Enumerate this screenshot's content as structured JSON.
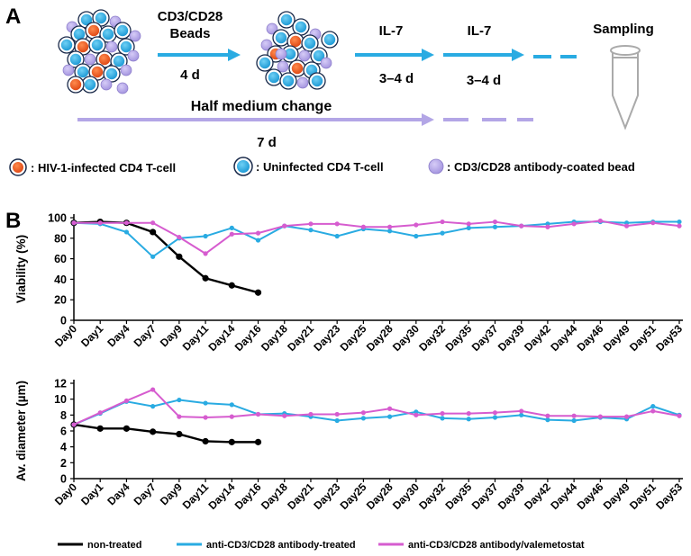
{
  "panel_a": {
    "label": "A",
    "step1_line1": "CD3/CD28",
    "step1_line2": "Beads",
    "step1_duration": "4 d",
    "step2_label": "IL-7",
    "step2_duration": "3–4 d",
    "step3_label": "IL-7",
    "step3_duration": "3–4 d",
    "sampling": "Sampling",
    "half_medium": "Half medium change",
    "half_medium_duration": "7 d",
    "legend": {
      "infected": ": HIV-1-infected CD4 T-cell",
      "uninfected": ": Uninfected CD4 T-cell",
      "bead": ": CD3/CD28 antibody-coated bead"
    }
  },
  "panel_b": {
    "label": "B"
  },
  "colors": {
    "infected": "#ef5a24",
    "uninfected": "#29abe2",
    "bead": "#b3a6e6",
    "arrow_blue": "#29abe2",
    "arrow_purple": "#b3a6e6",
    "non_treated": "#000000",
    "antibody": "#29abe2",
    "valemetostat": "#d65ccf"
  },
  "chart_data": [
    {
      "type": "line",
      "ylabel": "Viability (%)",
      "xlabel": "",
      "ylim": [
        0,
        100
      ],
      "yticks": [
        0,
        20,
        40,
        60,
        80,
        100
      ],
      "categories": [
        "Day0",
        "Day1",
        "Day4",
        "Day7",
        "Day9",
        "Day11",
        "Day14",
        "Day16",
        "Day18",
        "Day21",
        "Day23",
        "Day25",
        "Day28",
        "Day30",
        "Day32",
        "Day35",
        "Day37",
        "Day39",
        "Day42",
        "Day44",
        "Day46",
        "Day49",
        "Day51",
        "Day53"
      ],
      "series": [
        {
          "name": "non-treated",
          "values": [
            95,
            96,
            95,
            86,
            62,
            41,
            34,
            27,
            null,
            null,
            null,
            null,
            null,
            null,
            null,
            null,
            null,
            null,
            null,
            null,
            null,
            null,
            null,
            null
          ]
        },
        {
          "name": "anti-CD3/CD28 antibody-treated",
          "values": [
            95,
            94,
            86,
            62,
            80,
            82,
            90,
            78,
            92,
            88,
            82,
            89,
            87,
            82,
            85,
            90,
            91,
            92,
            94,
            96,
            96,
            95,
            96,
            96
          ]
        },
        {
          "name": "anti-CD3/CD28 antibody/valemetostat",
          "values": [
            95,
            95,
            95,
            95,
            81,
            65,
            84,
            85,
            92,
            94,
            94,
            91,
            91,
            93,
            96,
            94,
            96,
            92,
            91,
            94,
            97,
            92,
            95,
            92
          ]
        }
      ]
    },
    {
      "type": "line",
      "ylabel": "Av. diameter (µm)",
      "xlabel": "",
      "ylim": [
        0,
        12
      ],
      "yticks": [
        0,
        2,
        4,
        6,
        8,
        10,
        12
      ],
      "categories": [
        "Day0",
        "Day1",
        "Day4",
        "Day7",
        "Day9",
        "Day11",
        "Day14",
        "Day16",
        "Day18",
        "Day21",
        "Day23",
        "Day25",
        "Day28",
        "Day30",
        "Day32",
        "Day35",
        "Day37",
        "Day39",
        "Day42",
        "Day44",
        "Day46",
        "Day49",
        "Day51",
        "Day53"
      ],
      "series": [
        {
          "name": "non-treated",
          "values": [
            6.8,
            6.3,
            6.3,
            5.9,
            5.6,
            4.7,
            4.6,
            4.6,
            null,
            null,
            null,
            null,
            null,
            null,
            null,
            null,
            null,
            null,
            null,
            null,
            null,
            null,
            null,
            null
          ]
        },
        {
          "name": "anti-CD3/CD28 antibody-treated",
          "values": [
            6.8,
            8.2,
            9.7,
            9.1,
            9.9,
            9.5,
            9.3,
            8.1,
            8.2,
            7.8,
            7.3,
            7.6,
            7.8,
            8.4,
            7.6,
            7.5,
            7.7,
            8.0,
            7.4,
            7.3,
            7.7,
            7.5,
            9.1,
            8.0
          ]
        },
        {
          "name": "anti-CD3/CD28 antibody/valemetostat",
          "values": [
            6.8,
            8.3,
            9.8,
            11.2,
            7.8,
            7.7,
            7.8,
            8.1,
            7.9,
            8.1,
            8.1,
            8.3,
            8.8,
            8.0,
            8.2,
            8.2,
            8.3,
            8.5,
            7.9,
            7.9,
            7.8,
            7.8,
            8.5,
            7.9
          ]
        }
      ]
    }
  ],
  "legend": {
    "non_treated": "non-treated",
    "antibody": "anti-CD3/CD28 antibody-treated",
    "valemetostat": "anti-CD3/CD28 antibody/valemetostat"
  }
}
